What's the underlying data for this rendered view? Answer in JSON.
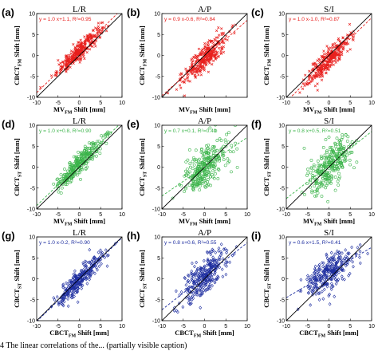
{
  "caption": "4 The linear correlations of the... (partially visible caption)",
  "axis_labels": {
    "x_mvfm": {
      "pre": "MV",
      "sub": "FM",
      "post": " Shift [mm]"
    },
    "x_cbctfm": {
      "pre": "CBCT",
      "sub": "FM",
      "post": " Shift [mm]"
    },
    "y_cbctfm": {
      "pre": "CBCT",
      "sub": "FM",
      "post": " Shift [mm]"
    },
    "y_cbctst": {
      "pre": "CBCT",
      "sub": "ST",
      "post": " Shift [mm]"
    }
  },
  "colors": {
    "red": "#e8201e",
    "green": "#3cb44b",
    "blue": "#1f2fa0",
    "identity": "#000000"
  },
  "chart_data": [
    {
      "type": "scatter",
      "panel": "(a)",
      "title": "L/R",
      "row": 0,
      "col": 0,
      "color": "red",
      "marker": "x",
      "xaxis": "x_mvfm",
      "yaxis": "y_cbctfm",
      "fit": {
        "slope": 1.0,
        "intercept": 1.1,
        "r2": 0.95
      },
      "equation": "y = 1.0 x+1.1, R²=0.95",
      "n_points": 320,
      "spread": 1.0,
      "xlim": [
        -10,
        10
      ],
      "ylim": [
        -10,
        10
      ],
      "ticks": [
        -10,
        -5,
        0,
        5,
        10
      ],
      "show_xticks": true
    },
    {
      "type": "scatter",
      "panel": "(b)",
      "title": "A/P",
      "row": 0,
      "col": 1,
      "color": "red",
      "marker": "x",
      "xaxis": "x_mvfm",
      "yaxis": "y_cbctfm",
      "fit": {
        "slope": 0.9,
        "intercept": -0.6,
        "r2": 0.84
      },
      "equation": "y = 0.9 x-0.6, R²=0.84",
      "n_points": 320,
      "spread": 1.6,
      "xlim": [
        -10,
        10
      ],
      "ylim": [
        -10,
        10
      ],
      "ticks": [
        -10,
        -5,
        0,
        5,
        10
      ],
      "show_xticks": false
    },
    {
      "type": "scatter",
      "panel": "(c)",
      "title": "S/I",
      "row": 0,
      "col": 2,
      "color": "red",
      "marker": "x",
      "xaxis": "x_mvfm",
      "yaxis": "y_cbctfm",
      "fit": {
        "slope": 1.0,
        "intercept": -1.0,
        "r2": 0.87
      },
      "equation": "y = 1.0 x-1.0, R²=0.87",
      "n_points": 320,
      "spread": 1.4,
      "xlim": [
        -10,
        10
      ],
      "ylim": [
        -10,
        10
      ],
      "ticks": [
        -10,
        -5,
        0,
        5,
        10
      ],
      "show_xticks": true
    },
    {
      "type": "scatter",
      "panel": "(d)",
      "title": "L/R",
      "row": 1,
      "col": 0,
      "color": "green",
      "marker": "o",
      "xaxis": "x_mvfm",
      "yaxis": "y_cbctst",
      "fit": {
        "slope": 1.0,
        "intercept": 0.8,
        "r2": 0.9
      },
      "equation": "y = 1.0 x+0.8, R²=0.90",
      "n_points": 300,
      "spread": 1.2,
      "xlim": [
        -10,
        10
      ],
      "ylim": [
        -10,
        10
      ],
      "ticks": [
        -10,
        -5,
        0,
        5,
        10
      ],
      "show_xticks": true
    },
    {
      "type": "scatter",
      "panel": "(e)",
      "title": "A/P",
      "row": 1,
      "col": 1,
      "color": "green",
      "marker": "o",
      "xaxis": "x_mvfm",
      "yaxis": "y_cbctst",
      "fit": {
        "slope": 0.7,
        "intercept": 0.1,
        "r2": 0.49
      },
      "equation": "y = 0.7 x+0.1, R²=0.49",
      "n_points": 300,
      "spread": 2.6,
      "xlim": [
        -10,
        10
      ],
      "ylim": [
        -10,
        10
      ],
      "ticks": [
        -10,
        -5,
        0,
        5,
        10
      ],
      "show_xticks": true
    },
    {
      "type": "scatter",
      "panel": "(f)",
      "title": "S/I",
      "row": 1,
      "col": 2,
      "color": "green",
      "marker": "o",
      "xaxis": "x_mvfm",
      "yaxis": "y_cbctst",
      "fit": {
        "slope": 0.8,
        "intercept": 0.5,
        "r2": 0.51
      },
      "equation": "y = 0.8 x+0.5, R²=0.51",
      "n_points": 300,
      "spread": 2.4,
      "xlim": [
        -10,
        10
      ],
      "ylim": [
        -10,
        10
      ],
      "ticks": [
        -10,
        -5,
        0,
        5,
        10
      ],
      "show_xticks": true
    },
    {
      "type": "scatter",
      "panel": "(g)",
      "title": "L/R",
      "row": 2,
      "col": 0,
      "color": "blue",
      "marker": "d",
      "xaxis": "x_cbctfm",
      "yaxis": "y_cbctst",
      "fit": {
        "slope": 1.0,
        "intercept": -0.2,
        "r2": 0.9
      },
      "equation": "y = 1.0 x-0.2, R²=0.90",
      "n_points": 300,
      "spread": 1.2,
      "xlim": [
        -10,
        10
      ],
      "ylim": [
        -10,
        10
      ],
      "ticks": [
        -10,
        -5,
        0,
        5,
        10
      ],
      "show_xticks": true
    },
    {
      "type": "scatter",
      "panel": "(h)",
      "title": "A/P",
      "row": 2,
      "col": 1,
      "color": "blue",
      "marker": "d",
      "xaxis": "x_cbctfm",
      "yaxis": "y_cbctst",
      "fit": {
        "slope": 0.8,
        "intercept": 0.6,
        "r2": 0.55
      },
      "equation": "y = 0.8 x+0.6, R²=0.55",
      "n_points": 300,
      "spread": 2.2,
      "xlim": [
        -10,
        10
      ],
      "ylim": [
        -10,
        10
      ],
      "ticks": [
        -10,
        -5,
        0,
        5,
        10
      ],
      "show_xticks": true
    },
    {
      "type": "scatter",
      "panel": "(i)",
      "title": "S/I",
      "row": 2,
      "col": 2,
      "color": "blue",
      "marker": "d",
      "xaxis": "x_cbctfm",
      "yaxis": "y_cbctst",
      "fit": {
        "slope": 0.6,
        "intercept": 1.5,
        "r2": 0.41
      },
      "equation": "y = 0.6 x+1.5, R²=0.41",
      "n_points": 300,
      "spread": 2.2,
      "xlim": [
        -10,
        10
      ],
      "ylim": [
        -10,
        10
      ],
      "ticks": [
        -10,
        -5,
        0,
        5,
        10
      ],
      "show_xticks": true
    }
  ]
}
